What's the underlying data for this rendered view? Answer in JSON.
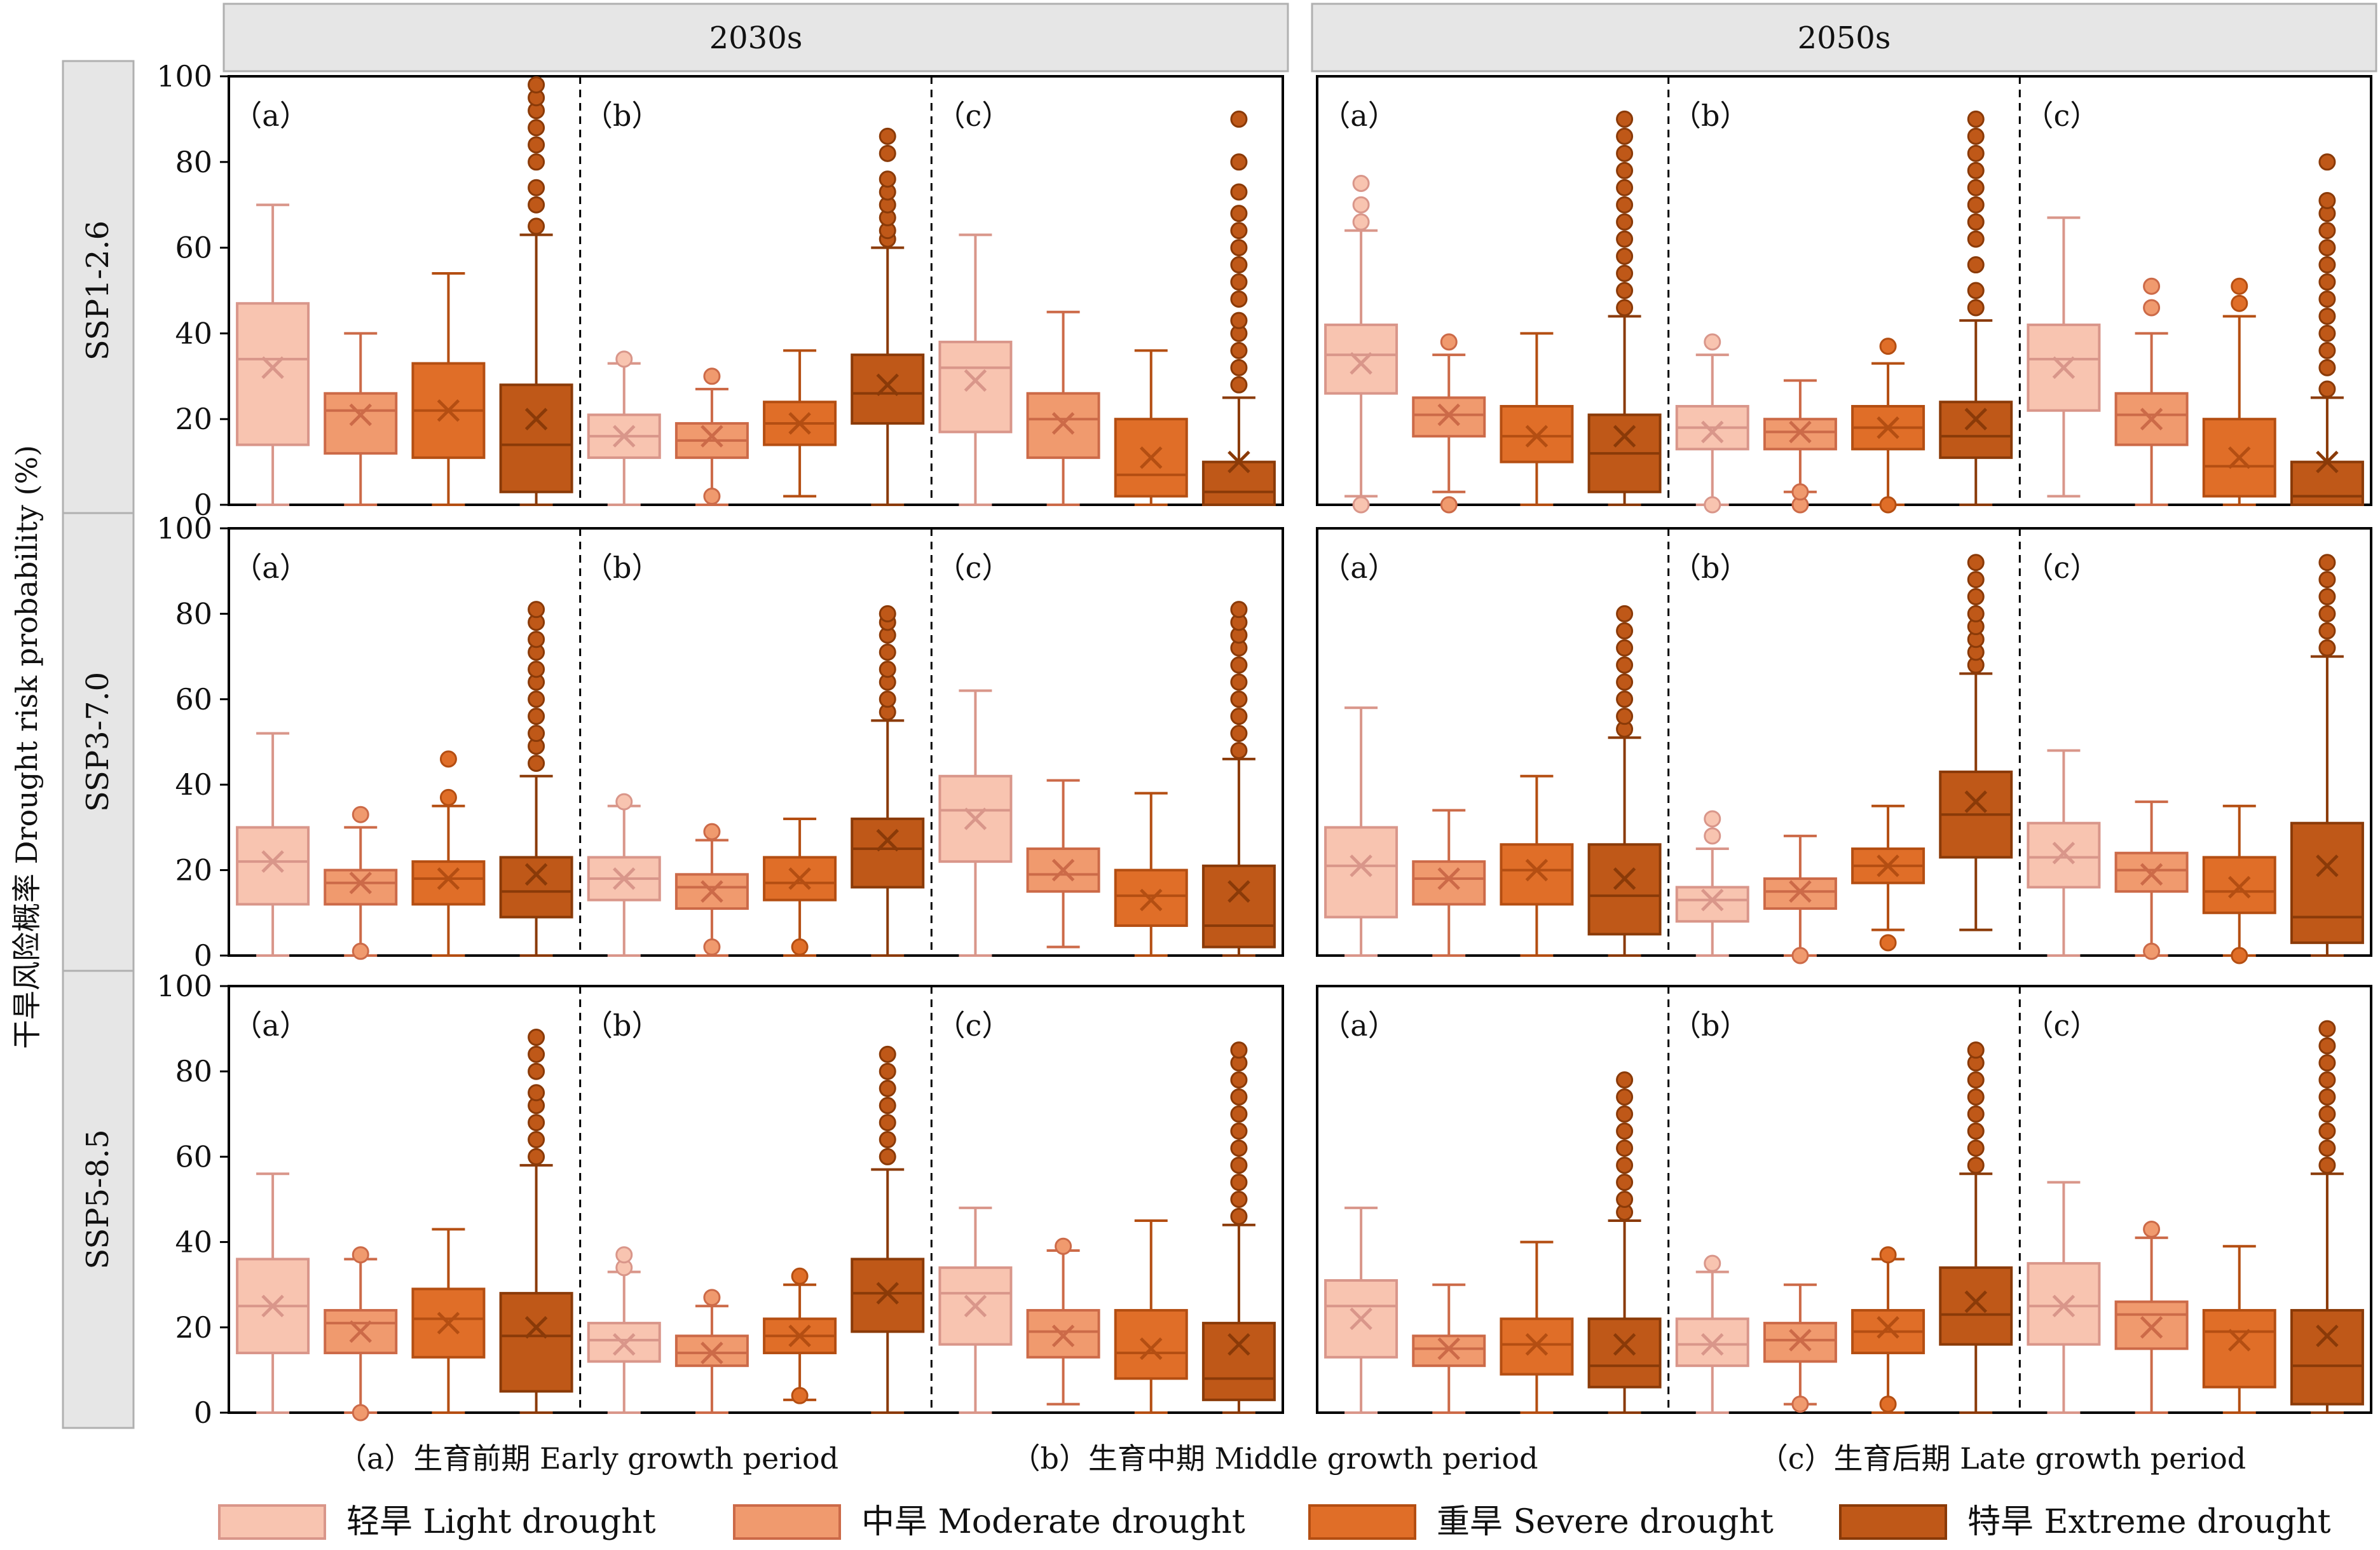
{
  "chart_data": {
    "type": "box",
    "ylabel": "干旱风险概率 Drought risk probability (%)",
    "ylim": [
      0,
      100
    ],
    "yticks": [
      0,
      20,
      40,
      60,
      80,
      100
    ],
    "columns": [
      "2030s",
      "2050s"
    ],
    "rows": [
      "SSP1-2.6",
      "SSP3-7.0",
      "SSP5-8.5"
    ],
    "periods": [
      {
        "tag": "（a）",
        "label": "（a）生育前期 Early growth period"
      },
      {
        "tag": "（b）",
        "label": "（b）生育中期 Middle growth period"
      },
      {
        "tag": "（c）",
        "label": "（c）生育后期 Late growth period"
      }
    ],
    "series": [
      {
        "name": "轻旱 Light drought",
        "color": "#f8c4b0",
        "edge": "#d9968a"
      },
      {
        "name": "中旱 Moderate drought",
        "color": "#f09a6e",
        "edge": "#cc6a48"
      },
      {
        "name": "重旱 Severe drought",
        "color": "#e06e28",
        "edge": "#b44e12"
      },
      {
        "name": "特旱 Extreme drought",
        "color": "#bf5818",
        "edge": "#8a3a08"
      }
    ],
    "box_fields": [
      "q1",
      "median",
      "q3",
      "whisker_low",
      "whisker_high",
      "mean",
      "outliers"
    ],
    "panels": [
      {
        "row": "SSP1-2.6",
        "column": "2030s",
        "boxes": [
          [
            [
              14,
              34,
              47,
              0,
              70,
              32,
              []
            ],
            [
              12,
              22,
              26,
              0,
              40,
              21,
              []
            ],
            [
              11,
              22,
              33,
              0,
              54,
              22,
              []
            ],
            [
              3,
              14,
              28,
              0,
              63,
              20,
              [
                65,
                70,
                74,
                80,
                84,
                88,
                92,
                95,
                98
              ]
            ]
          ],
          [
            [
              11,
              16,
              21,
              0,
              33,
              16,
              [
                34
              ]
            ],
            [
              11,
              15,
              19,
              0,
              27,
              16,
              [
                2,
                30
              ]
            ],
            [
              14,
              19,
              24,
              2,
              36,
              19,
              []
            ],
            [
              19,
              26,
              35,
              0,
              60,
              28,
              [
                62,
                64,
                67,
                70,
                73,
                76,
                82,
                86
              ]
            ]
          ],
          [
            [
              17,
              32,
              38,
              0,
              63,
              29,
              []
            ],
            [
              11,
              20,
              26,
              0,
              45,
              19,
              []
            ],
            [
              2,
              7,
              20,
              0,
              36,
              11,
              []
            ],
            [
              0,
              3,
              10,
              0,
              25,
              10,
              [
                28,
                32,
                36,
                40,
                43,
                48,
                52,
                56,
                60,
                64,
                68,
                73,
                80,
                90
              ]
            ]
          ]
        ]
      },
      {
        "row": "SSP1-2.6",
        "column": "2050s",
        "boxes": [
          [
            [
              26,
              35,
              42,
              2,
              64,
              33,
              [
                0,
                66,
                70,
                75
              ]
            ],
            [
              16,
              21,
              25,
              3,
              35,
              21,
              [
                0,
                38
              ]
            ],
            [
              10,
              16,
              23,
              0,
              40,
              16,
              []
            ],
            [
              3,
              12,
              21,
              0,
              44,
              16,
              [
                46,
                50,
                54,
                58,
                62,
                66,
                70,
                74,
                78,
                82,
                86,
                90
              ]
            ]
          ],
          [
            [
              13,
              18,
              23,
              0,
              35,
              17,
              [
                0,
                38
              ]
            ],
            [
              13,
              17,
              20,
              3,
              29,
              17,
              [
                0,
                3
              ]
            ],
            [
              13,
              18,
              23,
              0,
              33,
              18,
              [
                0,
                37
              ]
            ],
            [
              11,
              16,
              24,
              0,
              43,
              20,
              [
                46,
                50,
                56,
                62,
                66,
                70,
                74,
                78,
                82,
                86,
                90
              ]
            ]
          ],
          [
            [
              22,
              34,
              42,
              2,
              67,
              32,
              []
            ],
            [
              14,
              21,
              26,
              0,
              40,
              20,
              [
                46,
                51
              ]
            ],
            [
              2,
              9,
              20,
              0,
              44,
              11,
              [
                47,
                51
              ]
            ],
            [
              0,
              2,
              10,
              0,
              25,
              10,
              [
                27,
                32,
                36,
                40,
                44,
                48,
                52,
                56,
                60,
                64,
                68,
                71,
                80
              ]
            ]
          ]
        ]
      },
      {
        "row": "SSP3-7.0",
        "column": "2030s",
        "boxes": [
          [
            [
              12,
              22,
              30,
              0,
              52,
              22,
              []
            ],
            [
              12,
              17,
              20,
              0,
              30,
              17,
              [
                1,
                33
              ]
            ],
            [
              12,
              18,
              22,
              0,
              35,
              18,
              [
                37,
                46
              ]
            ],
            [
              9,
              15,
              23,
              0,
              42,
              19,
              [
                45,
                49,
                52,
                56,
                60,
                64,
                67,
                71,
                74,
                78,
                81
              ]
            ]
          ],
          [
            [
              13,
              18,
              23,
              0,
              35,
              18,
              [
                36
              ]
            ],
            [
              11,
              16,
              19,
              0,
              27,
              15,
              [
                2,
                29
              ]
            ],
            [
              13,
              17,
              23,
              0,
              32,
              18,
              [
                2
              ]
            ],
            [
              16,
              25,
              32,
              0,
              55,
              27,
              [
                57,
                60,
                64,
                67,
                71,
                75,
                78,
                80
              ]
            ]
          ],
          [
            [
              22,
              34,
              42,
              0,
              62,
              32,
              []
            ],
            [
              15,
              19,
              25,
              2,
              41,
              20,
              []
            ],
            [
              7,
              14,
              20,
              0,
              38,
              13,
              []
            ],
            [
              2,
              7,
              21,
              0,
              46,
              15,
              [
                48,
                52,
                56,
                60,
                64,
                68,
                72,
                75,
                78,
                81
              ]
            ]
          ]
        ]
      },
      {
        "row": "SSP3-7.0",
        "column": "2050s",
        "boxes": [
          [
            [
              9,
              21,
              30,
              0,
              58,
              21,
              []
            ],
            [
              12,
              18,
              22,
              0,
              34,
              18,
              []
            ],
            [
              12,
              20,
              26,
              0,
              42,
              20,
              []
            ],
            [
              5,
              14,
              26,
              0,
              51,
              18,
              [
                53,
                56,
                60,
                64,
                68,
                72,
                76,
                80
              ]
            ]
          ],
          [
            [
              8,
              13,
              16,
              0,
              25,
              13,
              [
                28,
                32
              ]
            ],
            [
              11,
              15,
              18,
              0,
              28,
              15,
              [
                0
              ]
            ],
            [
              17,
              21,
              25,
              6,
              35,
              21,
              [
                3
              ]
            ],
            [
              23,
              33,
              43,
              6,
              66,
              36,
              [
                68,
                71,
                74,
                77,
                80,
                84,
                88,
                92
              ]
            ]
          ],
          [
            [
              16,
              23,
              31,
              0,
              48,
              24,
              []
            ],
            [
              15,
              20,
              24,
              0,
              36,
              19,
              [
                1
              ]
            ],
            [
              10,
              15,
              23,
              0,
              35,
              16,
              [
                0
              ]
            ],
            [
              3,
              9,
              31,
              0,
              70,
              21,
              [
                72,
                76,
                80,
                84,
                88,
                92
              ]
            ]
          ]
        ]
      },
      {
        "row": "SSP5-8.5",
        "column": "2030s",
        "boxes": [
          [
            [
              14,
              25,
              36,
              0,
              56,
              25,
              []
            ],
            [
              14,
              21,
              24,
              0,
              36,
              19,
              [
                0,
                37
              ]
            ],
            [
              13,
              22,
              29,
              0,
              43,
              21,
              []
            ],
            [
              5,
              18,
              28,
              0,
              58,
              20,
              [
                60,
                64,
                68,
                72,
                75,
                80,
                84,
                88
              ]
            ]
          ],
          [
            [
              12,
              17,
              21,
              0,
              33,
              16,
              [
                34,
                37
              ]
            ],
            [
              11,
              14,
              18,
              0,
              25,
              14,
              [
                27
              ]
            ],
            [
              14,
              18,
              22,
              3,
              30,
              18,
              [
                4,
                32
              ]
            ],
            [
              19,
              28,
              36,
              0,
              57,
              28,
              [
                60,
                64,
                68,
                72,
                76,
                80,
                84
              ]
            ]
          ],
          [
            [
              16,
              28,
              34,
              0,
              48,
              25,
              []
            ],
            [
              13,
              19,
              24,
              2,
              38,
              18,
              [
                39
              ]
            ],
            [
              8,
              14,
              24,
              0,
              45,
              15,
              []
            ],
            [
              3,
              8,
              21,
              0,
              44,
              16,
              [
                46,
                50,
                54,
                58,
                62,
                66,
                70,
                74,
                78,
                82,
                85
              ]
            ]
          ]
        ]
      },
      {
        "row": "SSP5-8.5",
        "column": "2050s",
        "boxes": [
          [
            [
              13,
              25,
              31,
              0,
              48,
              22,
              []
            ],
            [
              11,
              15,
              18,
              0,
              30,
              15,
              []
            ],
            [
              9,
              16,
              22,
              0,
              40,
              16,
              []
            ],
            [
              6,
              11,
              22,
              0,
              45,
              16,
              [
                47,
                50,
                54,
                58,
                62,
                66,
                70,
                74,
                78
              ]
            ]
          ],
          [
            [
              11,
              16,
              22,
              0,
              33,
              16,
              [
                35
              ]
            ],
            [
              12,
              17,
              21,
              2,
              30,
              17,
              [
                2
              ]
            ],
            [
              14,
              19,
              24,
              0,
              36,
              20,
              [
                2,
                37
              ]
            ],
            [
              16,
              23,
              34,
              0,
              56,
              26,
              [
                58,
                62,
                66,
                70,
                74,
                78,
                82,
                85
              ]
            ]
          ],
          [
            [
              16,
              25,
              35,
              0,
              54,
              25,
              []
            ],
            [
              15,
              23,
              26,
              0,
              41,
              20,
              [
                43
              ]
            ],
            [
              6,
              19,
              24,
              0,
              39,
              17,
              []
            ],
            [
              2,
              11,
              24,
              0,
              56,
              18,
              [
                58,
                62,
                66,
                70,
                74,
                78,
                82,
                86,
                90
              ]
            ]
          ]
        ]
      }
    ]
  }
}
